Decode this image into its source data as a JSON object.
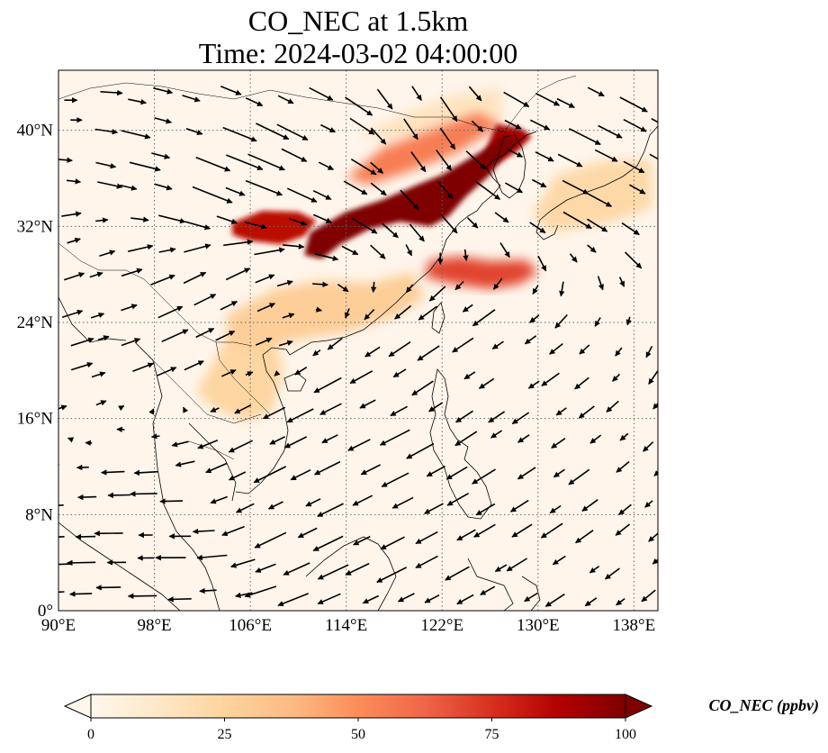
{
  "title": {
    "line1": "CO_NEC at 1.5km",
    "line2": "Time: 2024-03-02 04:00:00"
  },
  "map": {
    "lon_range": [
      90,
      140
    ],
    "lat_range": [
      0,
      45
    ],
    "lon_ticks": [
      90,
      98,
      106,
      114,
      122,
      130,
      138
    ],
    "lat_ticks": [
      0,
      8,
      16,
      24,
      32,
      40
    ],
    "lon_tick_labels": [
      "90°E",
      "98°E",
      "106°E",
      "114°E",
      "122°E",
      "130°E",
      "138°E"
    ],
    "lat_tick_labels": [
      "0°",
      "8°N",
      "16°N",
      "24°N",
      "32°N",
      "40°N"
    ],
    "gridlines": true,
    "background_color": "#fff5eb"
  },
  "colorbar": {
    "ticks": [
      0,
      25,
      50,
      75,
      100
    ],
    "tick_labels": [
      "0",
      "25",
      "50",
      "75",
      "100"
    ],
    "label": "CO_NEC (ppbv)",
    "colormap": "OrRd",
    "colors": [
      "#fff7ec",
      "#fee8c8",
      "#fdd49e",
      "#fdbb84",
      "#fc8d59",
      "#ef6548",
      "#d7301f",
      "#b30000",
      "#7f0000"
    ],
    "extend": "both"
  },
  "concentration_field": [
    {
      "name": "plume-core",
      "polygon_lonlat": [
        [
          111,
          31.5
        ],
        [
          114,
          33.2
        ],
        [
          117,
          34.2
        ],
        [
          120,
          35.5
        ],
        [
          122,
          36.3
        ],
        [
          124,
          37.5
        ],
        [
          126,
          38.7
        ],
        [
          127,
          39.6
        ],
        [
          128.5,
          39.2
        ],
        [
          127.3,
          38
        ],
        [
          126,
          36.3
        ],
        [
          124,
          34.5
        ],
        [
          122.5,
          32.8
        ],
        [
          121,
          32
        ],
        [
          118.5,
          32.4
        ],
        [
          116,
          31.8
        ],
        [
          113.5,
          30.5
        ],
        [
          112,
          29.3
        ],
        [
          110.5,
          29.6
        ]
      ],
      "value": 100
    },
    {
      "name": "plume-western-lobe",
      "polygon_lonlat": [
        [
          104.5,
          32.3
        ],
        [
          107,
          33.3
        ],
        [
          110,
          33.2
        ],
        [
          111.5,
          32.5
        ],
        [
          110.5,
          31.2
        ],
        [
          108.5,
          30.5
        ],
        [
          106,
          30.8
        ],
        [
          104.5,
          31.3
        ]
      ],
      "value": 85
    },
    {
      "name": "plume-korea",
      "polygon_lonlat": [
        [
          125.5,
          38
        ],
        [
          126.5,
          40.5
        ],
        [
          128.5,
          40.2
        ],
        [
          129.5,
          39.5
        ],
        [
          128.2,
          38.2
        ],
        [
          126.5,
          37.2
        ]
      ],
      "value": 90
    },
    {
      "name": "plume-east-china-sea",
      "polygon_lonlat": [
        [
          120.5,
          27.8
        ],
        [
          123,
          27.2
        ],
        [
          126,
          26.8
        ],
        [
          128.5,
          27.2
        ],
        [
          130,
          28.2
        ],
        [
          129,
          29.2
        ],
        [
          126,
          29.1
        ],
        [
          123.5,
          29.5
        ],
        [
          121,
          29.2
        ]
      ],
      "value": 70
    },
    {
      "name": "haze-south-china",
      "polygon_lonlat": [
        [
          104,
          24.6
        ],
        [
          108,
          26.8
        ],
        [
          112,
          27.5
        ],
        [
          116,
          27.3
        ],
        [
          119.5,
          28.2
        ],
        [
          120.5,
          26
        ],
        [
          118,
          24.5
        ],
        [
          114,
          23.2
        ],
        [
          110,
          22.6
        ],
        [
          106.5,
          21.6
        ],
        [
          104.3,
          22.2
        ]
      ],
      "value": 28
    },
    {
      "name": "haze-indochina",
      "polygon_lonlat": [
        [
          101.5,
          18.2
        ],
        [
          104.5,
          23.5
        ],
        [
          107.8,
          23.2
        ],
        [
          108.8,
          20
        ],
        [
          107.8,
          16.5
        ],
        [
          105.5,
          15.8
        ],
        [
          103,
          16.8
        ]
      ],
      "value": 24
    },
    {
      "name": "haze-japan",
      "polygon_lonlat": [
        [
          129.5,
          33
        ],
        [
          131.5,
          36.3
        ],
        [
          135.5,
          37.5
        ],
        [
          139.5,
          37.5
        ],
        [
          139.5,
          33.5
        ],
        [
          135.5,
          32.2
        ],
        [
          131,
          31.5
        ]
      ],
      "value": 22
    },
    {
      "name": "haze-north-plain",
      "polygon_lonlat": [
        [
          114,
          36
        ],
        [
          117,
          38.5
        ],
        [
          121,
          40
        ],
        [
          125,
          41.5
        ],
        [
          127,
          40.5
        ],
        [
          123,
          38
        ],
        [
          119,
          36.5
        ],
        [
          116,
          35.5
        ]
      ],
      "value": 55
    },
    {
      "name": "haze-inner-mongolia",
      "polygon_lonlat": [
        [
          115,
          39.5
        ],
        [
          119,
          41.5
        ],
        [
          123,
          43
        ],
        [
          127,
          43.5
        ],
        [
          127,
          41
        ],
        [
          122,
          40
        ],
        [
          118,
          39.2
        ]
      ],
      "value": 15
    }
  ],
  "wind_vectors_sample": [
    {
      "lon": 90,
      "lat": 42,
      "u": 3,
      "v": 0
    },
    {
      "lon": 96,
      "lat": 38,
      "u": 4,
      "v": -1
    },
    {
      "lon": 102,
      "lat": 36,
      "u": 5,
      "v": -2
    },
    {
      "lon": 110,
      "lat": 40,
      "u": 4,
      "v": -2
    },
    {
      "lon": 120,
      "lat": 42,
      "u": 2,
      "v": -3
    },
    {
      "lon": 130,
      "lat": 40,
      "u": 4,
      "v": -2
    },
    {
      "lon": 92,
      "lat": 28,
      "u": 3,
      "v": 1
    },
    {
      "lon": 102,
      "lat": 26,
      "u": 4,
      "v": 2
    },
    {
      "lon": 124,
      "lat": 20,
      "u": -3,
      "v": -2
    },
    {
      "lon": 116,
      "lat": 14,
      "u": -4,
      "v": -2
    },
    {
      "lon": 108,
      "lat": 10,
      "u": -4,
      "v": -2
    },
    {
      "lon": 100,
      "lat": 6,
      "u": -4,
      "v": 0
    }
  ]
}
